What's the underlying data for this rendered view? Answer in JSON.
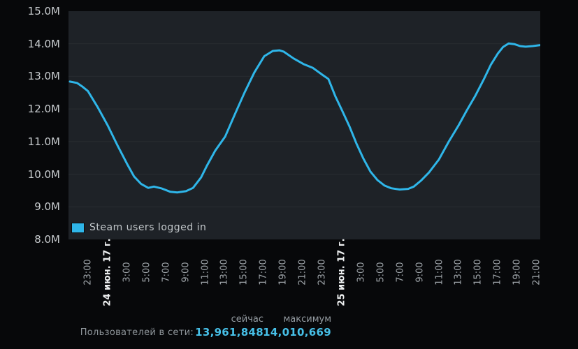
{
  "stats": {
    "users_label": "Пользователей в сети:",
    "now_header": "сейчас",
    "peak_header": "максимум",
    "now_value": "13,961,848",
    "peak_value": "14,010,669",
    "value_color": "#47c0e8"
  },
  "chart_data": {
    "type": "line",
    "title": "Steam users logged in",
    "x_domain": "23 июн. ~21:00 — 25 июн. ~21:20 (2017), подписи каждые 2 часа",
    "ylim": [
      8,
      15
    ],
    "y_unit": "millions of users (M)",
    "grid": "horizontal only",
    "legend_position": "bottom-left inside plot",
    "current_users": 13961848,
    "peak_users": 14010669,
    "y_ticks": [
      {
        "label": "15.0M",
        "value": 15
      },
      {
        "label": "14.0M",
        "value": 14
      },
      {
        "label": "13.0M",
        "value": 13
      },
      {
        "label": "12.0M",
        "value": 12
      },
      {
        "label": "11.0M",
        "value": 11
      },
      {
        "label": "10.0M",
        "value": 10
      },
      {
        "label": "9.0M",
        "value": 9
      },
      {
        "label": "8.0M",
        "value": 8
      }
    ],
    "x_ticks": [
      {
        "label": "23:00",
        "bold": false
      },
      {
        "label": "24 июн. 17 г.",
        "bold": true
      },
      {
        "label": "3:00",
        "bold": false
      },
      {
        "label": "5:00",
        "bold": false
      },
      {
        "label": "7:00",
        "bold": false
      },
      {
        "label": "9:00",
        "bold": false
      },
      {
        "label": "11:00",
        "bold": false
      },
      {
        "label": "13:00",
        "bold": false
      },
      {
        "label": "15:00",
        "bold": false
      },
      {
        "label": "17:00",
        "bold": false
      },
      {
        "label": "19:00",
        "bold": false
      },
      {
        "label": "21:00",
        "bold": false
      },
      {
        "label": "23:00",
        "bold": false
      },
      {
        "label": "25 июн. 17 г.",
        "bold": true
      },
      {
        "label": "3:00",
        "bold": false
      },
      {
        "label": "5:00",
        "bold": false
      },
      {
        "label": "7:00",
        "bold": false
      },
      {
        "label": "9:00",
        "bold": false
      },
      {
        "label": "11:00",
        "bold": false
      },
      {
        "label": "13:00",
        "bold": false
      },
      {
        "label": "15:00",
        "bold": false
      },
      {
        "label": "17:00",
        "bold": false
      },
      {
        "label": "19:00",
        "bold": false
      },
      {
        "label": "21:00",
        "bold": false
      }
    ],
    "series": [
      {
        "name": "Steam users logged in",
        "color": "#2fb6e9",
        "points_format": "[fraction of x-range 0..1, users in millions]",
        "points": [
          [
            0.003,
            12.84
          ],
          [
            0.018,
            12.8
          ],
          [
            0.03,
            12.68
          ],
          [
            0.041,
            12.55
          ],
          [
            0.062,
            12.05
          ],
          [
            0.083,
            11.5
          ],
          [
            0.104,
            10.88
          ],
          [
            0.124,
            10.32
          ],
          [
            0.139,
            9.93
          ],
          [
            0.154,
            9.7
          ],
          [
            0.169,
            9.58
          ],
          [
            0.181,
            9.62
          ],
          [
            0.198,
            9.56
          ],
          [
            0.216,
            9.46
          ],
          [
            0.231,
            9.44
          ],
          [
            0.249,
            9.48
          ],
          [
            0.264,
            9.58
          ],
          [
            0.281,
            9.9
          ],
          [
            0.293,
            10.25
          ],
          [
            0.311,
            10.72
          ],
          [
            0.332,
            11.15
          ],
          [
            0.353,
            11.85
          ],
          [
            0.373,
            12.5
          ],
          [
            0.394,
            13.12
          ],
          [
            0.415,
            13.62
          ],
          [
            0.433,
            13.78
          ],
          [
            0.447,
            13.8
          ],
          [
            0.456,
            13.76
          ],
          [
            0.477,
            13.55
          ],
          [
            0.498,
            13.38
          ],
          [
            0.518,
            13.26
          ],
          [
            0.538,
            13.05
          ],
          [
            0.551,
            12.92
          ],
          [
            0.566,
            12.38
          ],
          [
            0.581,
            11.92
          ],
          [
            0.596,
            11.45
          ],
          [
            0.61,
            10.95
          ],
          [
            0.625,
            10.48
          ],
          [
            0.64,
            10.08
          ],
          [
            0.655,
            9.82
          ],
          [
            0.67,
            9.65
          ],
          [
            0.684,
            9.57
          ],
          [
            0.702,
            9.53
          ],
          [
            0.72,
            9.55
          ],
          [
            0.732,
            9.62
          ],
          [
            0.747,
            9.8
          ],
          [
            0.764,
            10.05
          ],
          [
            0.785,
            10.45
          ],
          [
            0.806,
            11.0
          ],
          [
            0.827,
            11.5
          ],
          [
            0.844,
            11.95
          ],
          [
            0.862,
            12.4
          ],
          [
            0.88,
            12.9
          ],
          [
            0.895,
            13.35
          ],
          [
            0.91,
            13.7
          ],
          [
            0.921,
            13.9
          ],
          [
            0.933,
            14.01
          ],
          [
            0.945,
            13.99
          ],
          [
            0.957,
            13.93
          ],
          [
            0.969,
            13.91
          ],
          [
            0.984,
            13.93
          ],
          [
            1.0,
            13.96
          ]
        ]
      }
    ]
  }
}
